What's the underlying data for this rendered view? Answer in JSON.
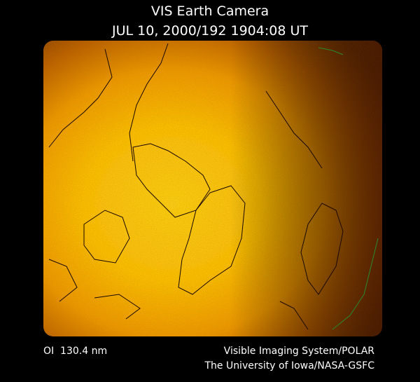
{
  "header": {
    "title": "VIS Earth Camera",
    "timestamp": "JUL 10, 2000/192 1904:08 UT"
  },
  "footer": {
    "wavelength": "OI  130.4 nm",
    "instrument": "Visible Imaging System/POLAR",
    "credit": "The University of Iowa/NASA-GSFC"
  }
}
